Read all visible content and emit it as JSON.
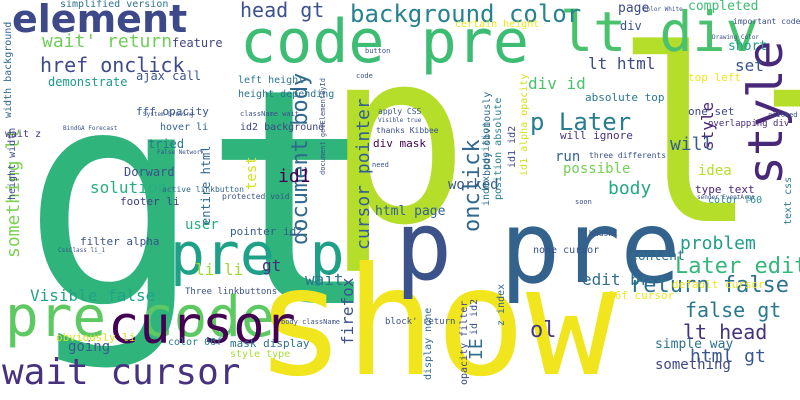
{
  "cloud": {
    "words": [
      {
        "text": "gt",
        "color": "#2fb47c"
      },
      {
        "text": "p lt",
        "color": "#b5de2b"
      },
      {
        "text": "show",
        "color": "#f1e51d"
      },
      {
        "text": "pre",
        "color": "#33638d"
      },
      {
        "text": "p",
        "color": "#3b528b"
      },
      {
        "text": "code pre",
        "color": "#3dbc74"
      },
      {
        "text": "lt div",
        "color": "#4ac16d"
      },
      {
        "text": "pre p",
        "color": "#1fa187"
      },
      {
        "text": "pre code",
        "color": "#5ec962"
      },
      {
        "text": "cursor",
        "color": "#440154"
      },
      {
        "text": "element",
        "color": "#3e4989"
      },
      {
        "text": "wait cursor",
        "color": "#46327e"
      },
      {
        "text": "style",
        "color": "#482878"
      },
      {
        "text": "background color",
        "color": "#26828e"
      },
      {
        "text": "document body",
        "color": "#31688e"
      },
      {
        "text": "onclick",
        "color": "#31688e"
      },
      {
        "text": "head gt",
        "color": "#3b528b"
      },
      {
        "text": "href onclick",
        "color": "#3e4a89"
      },
      {
        "text": "wait' return",
        "color": "#6ece58"
      },
      {
        "text": "p Later",
        "color": "#287d8e"
      },
      {
        "text": "Later edit",
        "color": "#35b779"
      },
      {
        "text": "return false",
        "color": "#2c728e"
      },
      {
        "text": "false gt",
        "color": "#2a788e"
      },
      {
        "text": "lt head",
        "color": "#46337e"
      },
      {
        "text": "something lt",
        "color": "#7ad151"
      },
      {
        "text": "Visible false",
        "color": "#20a386"
      },
      {
        "text": "problem",
        "color": "#1f9e89"
      },
      {
        "text": "cursor pointer",
        "color": "#355f8d"
      },
      {
        "text": "id1",
        "color": "#440154"
      },
      {
        "text": "body",
        "color": "#22a884"
      },
      {
        "text": "solution",
        "color": "#29af7f"
      },
      {
        "text": "html gt",
        "color": "#39568c"
      },
      {
        "text": "ol",
        "color": "#453781"
      },
      {
        "text": "IE",
        "color": "#2d708e"
      },
      {
        "text": "firefox",
        "color": "#3b528b"
      },
      {
        "text": "edit br",
        "color": "#2e6e8e"
      },
      {
        "text": "html page",
        "color": "#33638d"
      },
      {
        "text": "worked",
        "color": "#38598c"
      },
      {
        "text": "style",
        "color": "#482475"
      },
      {
        "text": "wait",
        "color": "#2b748e"
      },
      {
        "text": "li li",
        "color": "#a0da39"
      },
      {
        "text": "gt",
        "color": "#472c7a"
      },
      {
        "text": "user",
        "color": "#27ad81"
      },
      {
        "text": "going",
        "color": "#365c8d"
      },
      {
        "text": "something",
        "color": "#3f4788"
      },
      {
        "text": "div id",
        "color": "#4ac16d"
      },
      {
        "text": "lt html",
        "color": "#3e4989"
      },
      {
        "text": "will",
        "color": "#355e8d"
      },
      {
        "text": "run",
        "color": "#32658e"
      },
      {
        "text": "possible",
        "color": "#75d054"
      },
      {
        "text": "idea",
        "color": "#b5de2b"
      },
      {
        "text": "content",
        "color": "#2d718e"
      },
      {
        "text": "set",
        "color": "#3b528b"
      },
      {
        "text": "short",
        "color": "#1fa188"
      },
      {
        "text": "completed",
        "color": "#3fbc73"
      },
      {
        "text": "page",
        "color": "#3e4c8a"
      },
      {
        "text": "div",
        "color": "#3b528b"
      },
      {
        "text": "feature",
        "color": "#414487"
      },
      {
        "text": "ajax call",
        "color": "#3b528b"
      },
      {
        "text": "demonstrate",
        "color": "#1e9b8a"
      },
      {
        "text": "simplified version",
        "color": "#2c738e"
      },
      {
        "text": "tried",
        "color": "#2a788e"
      },
      {
        "text": "Dorward",
        "color": "#3b528b"
      },
      {
        "text": "entire html",
        "color": "#2f6b8e"
      },
      {
        "text": "test",
        "color": "#d2e21b"
      },
      {
        "text": "id2 background",
        "color": "#414487"
      },
      {
        "text": "hover li",
        "color": "#33638d"
      },
      {
        "text": "footer li",
        "color": "#423f85"
      },
      {
        "text": "filter alpha",
        "color": "#3b528b"
      },
      {
        "text": "pointer id2",
        "color": "#365d8d"
      },
      {
        "text": "obviously li",
        "color": "#d8e219"
      },
      {
        "text": "mask display",
        "color": "#2d718e"
      },
      {
        "text": "color 06f",
        "color": "#277f8e"
      },
      {
        "text": "style type",
        "color": "#a8db34"
      },
      {
        "text": "simple way",
        "color": "#2d708e"
      },
      {
        "text": "type text",
        "color": "#482475"
      },
      {
        "text": "top left",
        "color": "#f1e51d"
      },
      {
        "text": "absolute top",
        "color": "#2a788e"
      },
      {
        "text": "one set",
        "color": "#3e4989"
      },
      {
        "text": "wait z",
        "color": "#46337e"
      },
      {
        "text": "fff opacity",
        "color": "#38598c"
      },
      {
        "text": "div mask",
        "color": "#440154"
      },
      {
        "text": "left height",
        "color": "#2a788e"
      },
      {
        "text": "height depending",
        "color": "#2c738e"
      },
      {
        "text": "height width",
        "color": "#3e4a89"
      },
      {
        "text": "width background",
        "color": "#31688e"
      },
      {
        "text": "opacity filter",
        "color": "#404688"
      },
      {
        "text": "display none",
        "color": "#306a8e"
      },
      {
        "text": "z index",
        "color": "#34618d"
      },
      {
        "text": "id id2",
        "color": "#3b528b"
      },
      {
        "text": "index position",
        "color": "#2a788e"
      },
      {
        "text": "position absolute",
        "color": "#26828e"
      },
      {
        "text": "body obviously",
        "color": "#31688e"
      },
      {
        "text": "id1 alpha opacity",
        "color": "#d2e21b"
      },
      {
        "text": "id1 id2",
        "color": "#3e4989"
      },
      {
        "text": "will ignore",
        "color": "#46327e"
      },
      {
        "text": "overlapping div",
        "color": "#472c7a"
      },
      {
        "text": "default cursor",
        "color": "#f1e51d"
      },
      {
        "text": "06f cursor",
        "color": "#f1e51d"
      },
      {
        "text": "color f60",
        "color": "#21918c"
      },
      {
        "text": "text css",
        "color": "#2a788e"
      },
      {
        "text": "certain height",
        "color": "#f1e51d"
      },
      {
        "text": "important code",
        "color": "#3b528b"
      },
      {
        "text": "Three linkbuttons",
        "color": "#3b528b"
      },
      {
        "text": "active linkbutton",
        "color": "#31688e"
      },
      {
        "text": "protected void",
        "color": "#3b528b"
      },
      {
        "text": "apply CSS",
        "color": "#3b528b"
      },
      {
        "text": "thanks Kibbee",
        "color": "#3b528b"
      },
      {
        "text": "Khushi",
        "color": "#3b528b"
      },
      {
        "text": "three differents",
        "color": "#3b528b"
      },
      {
        "text": "sender EventArgs",
        "color": "#3b528b"
      },
      {
        "text": "Color White",
        "color": "#3b528b"
      },
      {
        "text": "Drawing Color",
        "color": "#3b528b"
      },
      {
        "text": "BindGA Forecast",
        "color": "#3b528b"
      },
      {
        "text": "False Network",
        "color": "#3b528b"
      },
      {
        "text": "CssClass li_1",
        "color": "#3b528b"
      },
      {
        "text": "body className",
        "color": "#3b528b"
      },
      {
        "text": "className wait",
        "color": "#3b528b"
      },
      {
        "text": "Visible true",
        "color": "#3b528b"
      },
      {
        "text": "System Drawing",
        "color": "#3b528b"
      },
      {
        "text": "document getElementById",
        "color": "#3b528b"
      },
      {
        "text": "block' return",
        "color": "#3b528b"
      },
      {
        "text": "none cursor",
        "color": "#3b528b"
      },
      {
        "text": "soon",
        "color": "#3b528b"
      },
      {
        "text": "clicked",
        "color": "#3b528b"
      },
      {
        "text": "button",
        "color": "#3b528b"
      },
      {
        "text": "need",
        "color": "#3b528b"
      },
      {
        "text": "code",
        "color": "#3b528b"
      }
    ]
  }
}
